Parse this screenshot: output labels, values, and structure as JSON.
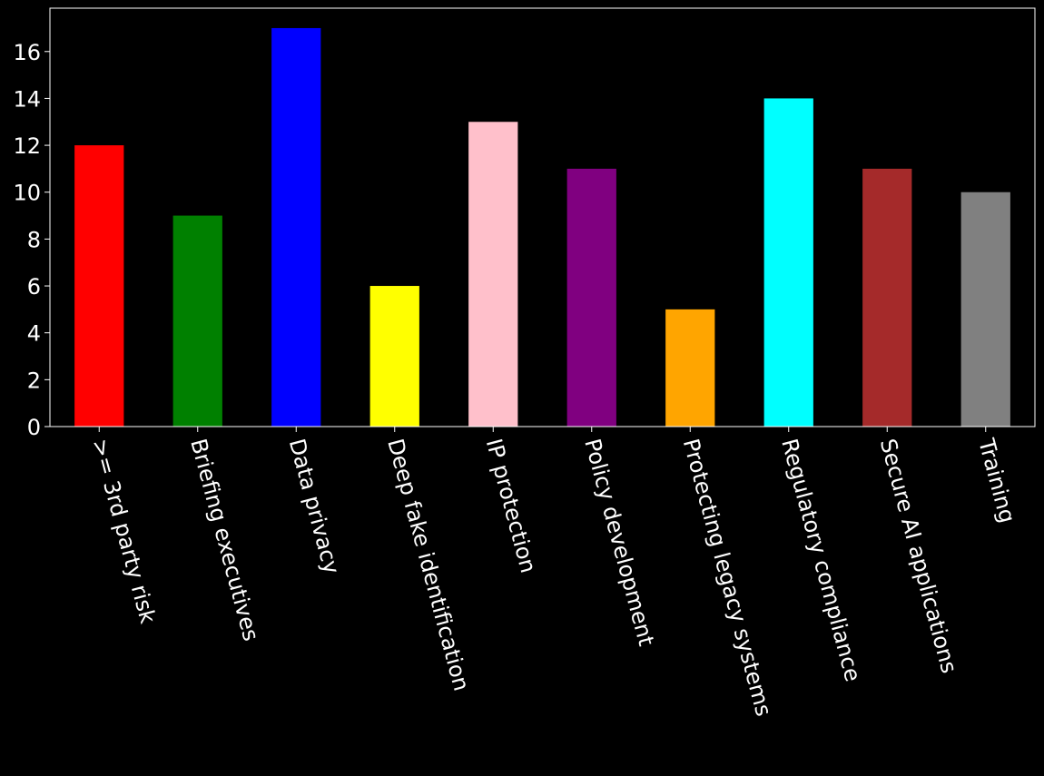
{
  "chart_data": {
    "type": "bar",
    "categories": [
      ">= 3rd party risk",
      "Briefing executives",
      "Data privacy",
      "Deep fake identification",
      "IP protection",
      "Policy development",
      "Protecting legacy systems",
      "Regulatory compliance",
      "Secure AI applications",
      "Training"
    ],
    "values": [
      12,
      9,
      17,
      6,
      13,
      11,
      5,
      14,
      11,
      10
    ],
    "colors": [
      "#ff0000",
      "#008000",
      "#0000ff",
      "#ffff00",
      "#ffc0cb",
      "#800080",
      "#ffa500",
      "#00ffff",
      "#a52a2a",
      "#808080"
    ],
    "title": "",
    "xlabel": "",
    "ylabel": "",
    "ylim": [
      0,
      17.85
    ],
    "yticks": [
      0,
      2,
      4,
      6,
      8,
      10,
      12,
      14,
      16
    ],
    "grid": false,
    "background": "#000000",
    "foreground": "#ffffff"
  }
}
